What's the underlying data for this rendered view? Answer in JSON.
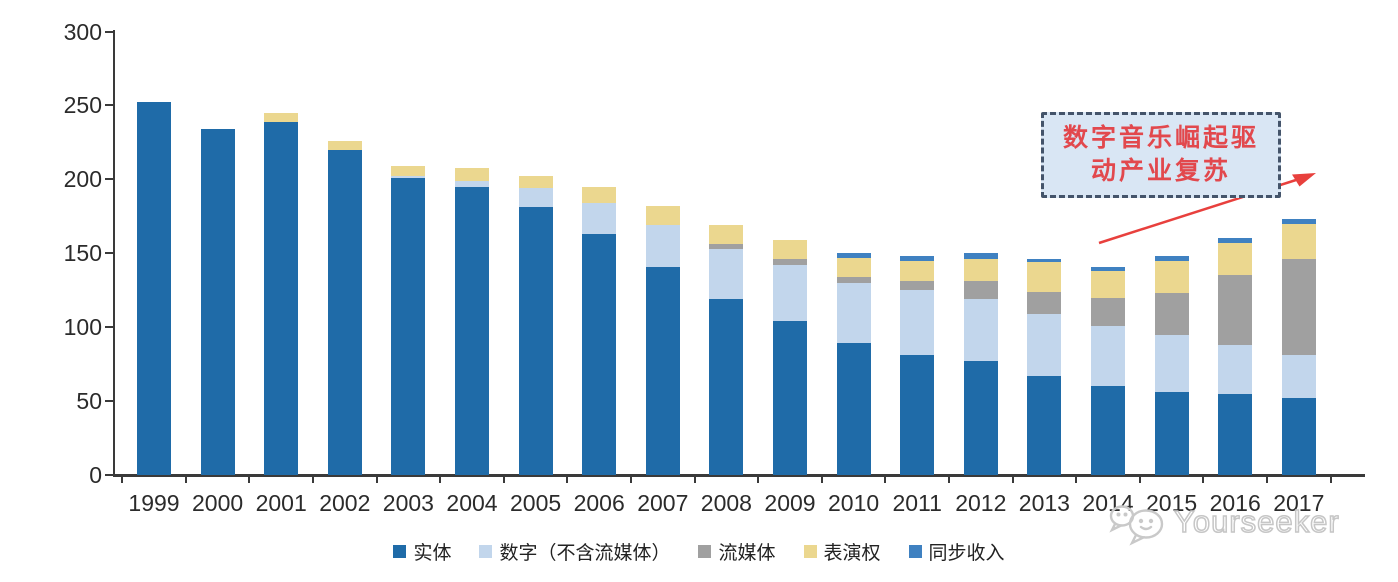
{
  "chart_data": {
    "type": "bar",
    "stacked": true,
    "title": "",
    "xlabel": "",
    "ylabel": "",
    "ylim": [
      0,
      300
    ],
    "yticks": [
      0,
      50,
      100,
      150,
      200,
      250,
      300
    ],
    "grid": false,
    "legend_position": "bottom",
    "categories": [
      "1999",
      "2000",
      "2001",
      "2002",
      "2003",
      "2004",
      "2005",
      "2006",
      "2007",
      "2008",
      "2009",
      "2010",
      "2011",
      "2012",
      "2013",
      "2014",
      "2015",
      "2016",
      "2017"
    ],
    "series": [
      {
        "key": "physical",
        "name": "实体",
        "color": "#1F6BA8",
        "values": [
          252,
          234,
          239,
          220,
          201,
          195,
          181,
          163,
          141,
          119,
          104,
          89,
          81,
          77,
          67,
          60,
          56,
          55,
          52
        ]
      },
      {
        "key": "digital-excl-streaming",
        "name": "数字（不含流媒体）",
        "color": "#C2D6EC",
        "values": [
          0,
          0,
          0,
          0,
          1,
          4,
          13,
          21,
          28,
          34,
          38,
          41,
          44,
          42,
          42,
          41,
          39,
          33,
          29
        ]
      },
      {
        "key": "streaming",
        "name": "流媒体",
        "color": "#A0A0A0",
        "values": [
          0,
          0,
          0,
          0,
          0,
          0,
          0,
          0,
          0,
          3,
          4,
          4,
          6,
          12,
          15,
          19,
          28,
          47,
          65
        ]
      },
      {
        "key": "performance-rights",
        "name": "表演权",
        "color": "#EBD78F",
        "values": [
          0,
          0,
          6,
          6,
          7,
          9,
          8,
          11,
          13,
          13,
          13,
          13,
          14,
          15,
          20,
          18,
          22,
          22,
          24
        ]
      },
      {
        "key": "sync-revenue",
        "name": "同步收入",
        "color": "#3F81C1",
        "values": [
          0,
          0,
          0,
          0,
          0,
          0,
          0,
          0,
          0,
          0,
          0,
          3,
          3,
          4,
          2,
          3,
          3,
          3,
          3
        ]
      }
    ]
  },
  "annotation": {
    "line1": "数字音乐崛起驱",
    "line2": "动产业复苏",
    "text_color": "#E2484D",
    "box_fill": "#D9E6F4",
    "border_color": "#44546A",
    "arrow_color": "#E8403D"
  },
  "watermark": {
    "text": "Yourseeker",
    "logo": "chat-bubbles-logo",
    "color": "#c9c9c9"
  },
  "axis": {
    "line_color": "#3a3a3a"
  }
}
